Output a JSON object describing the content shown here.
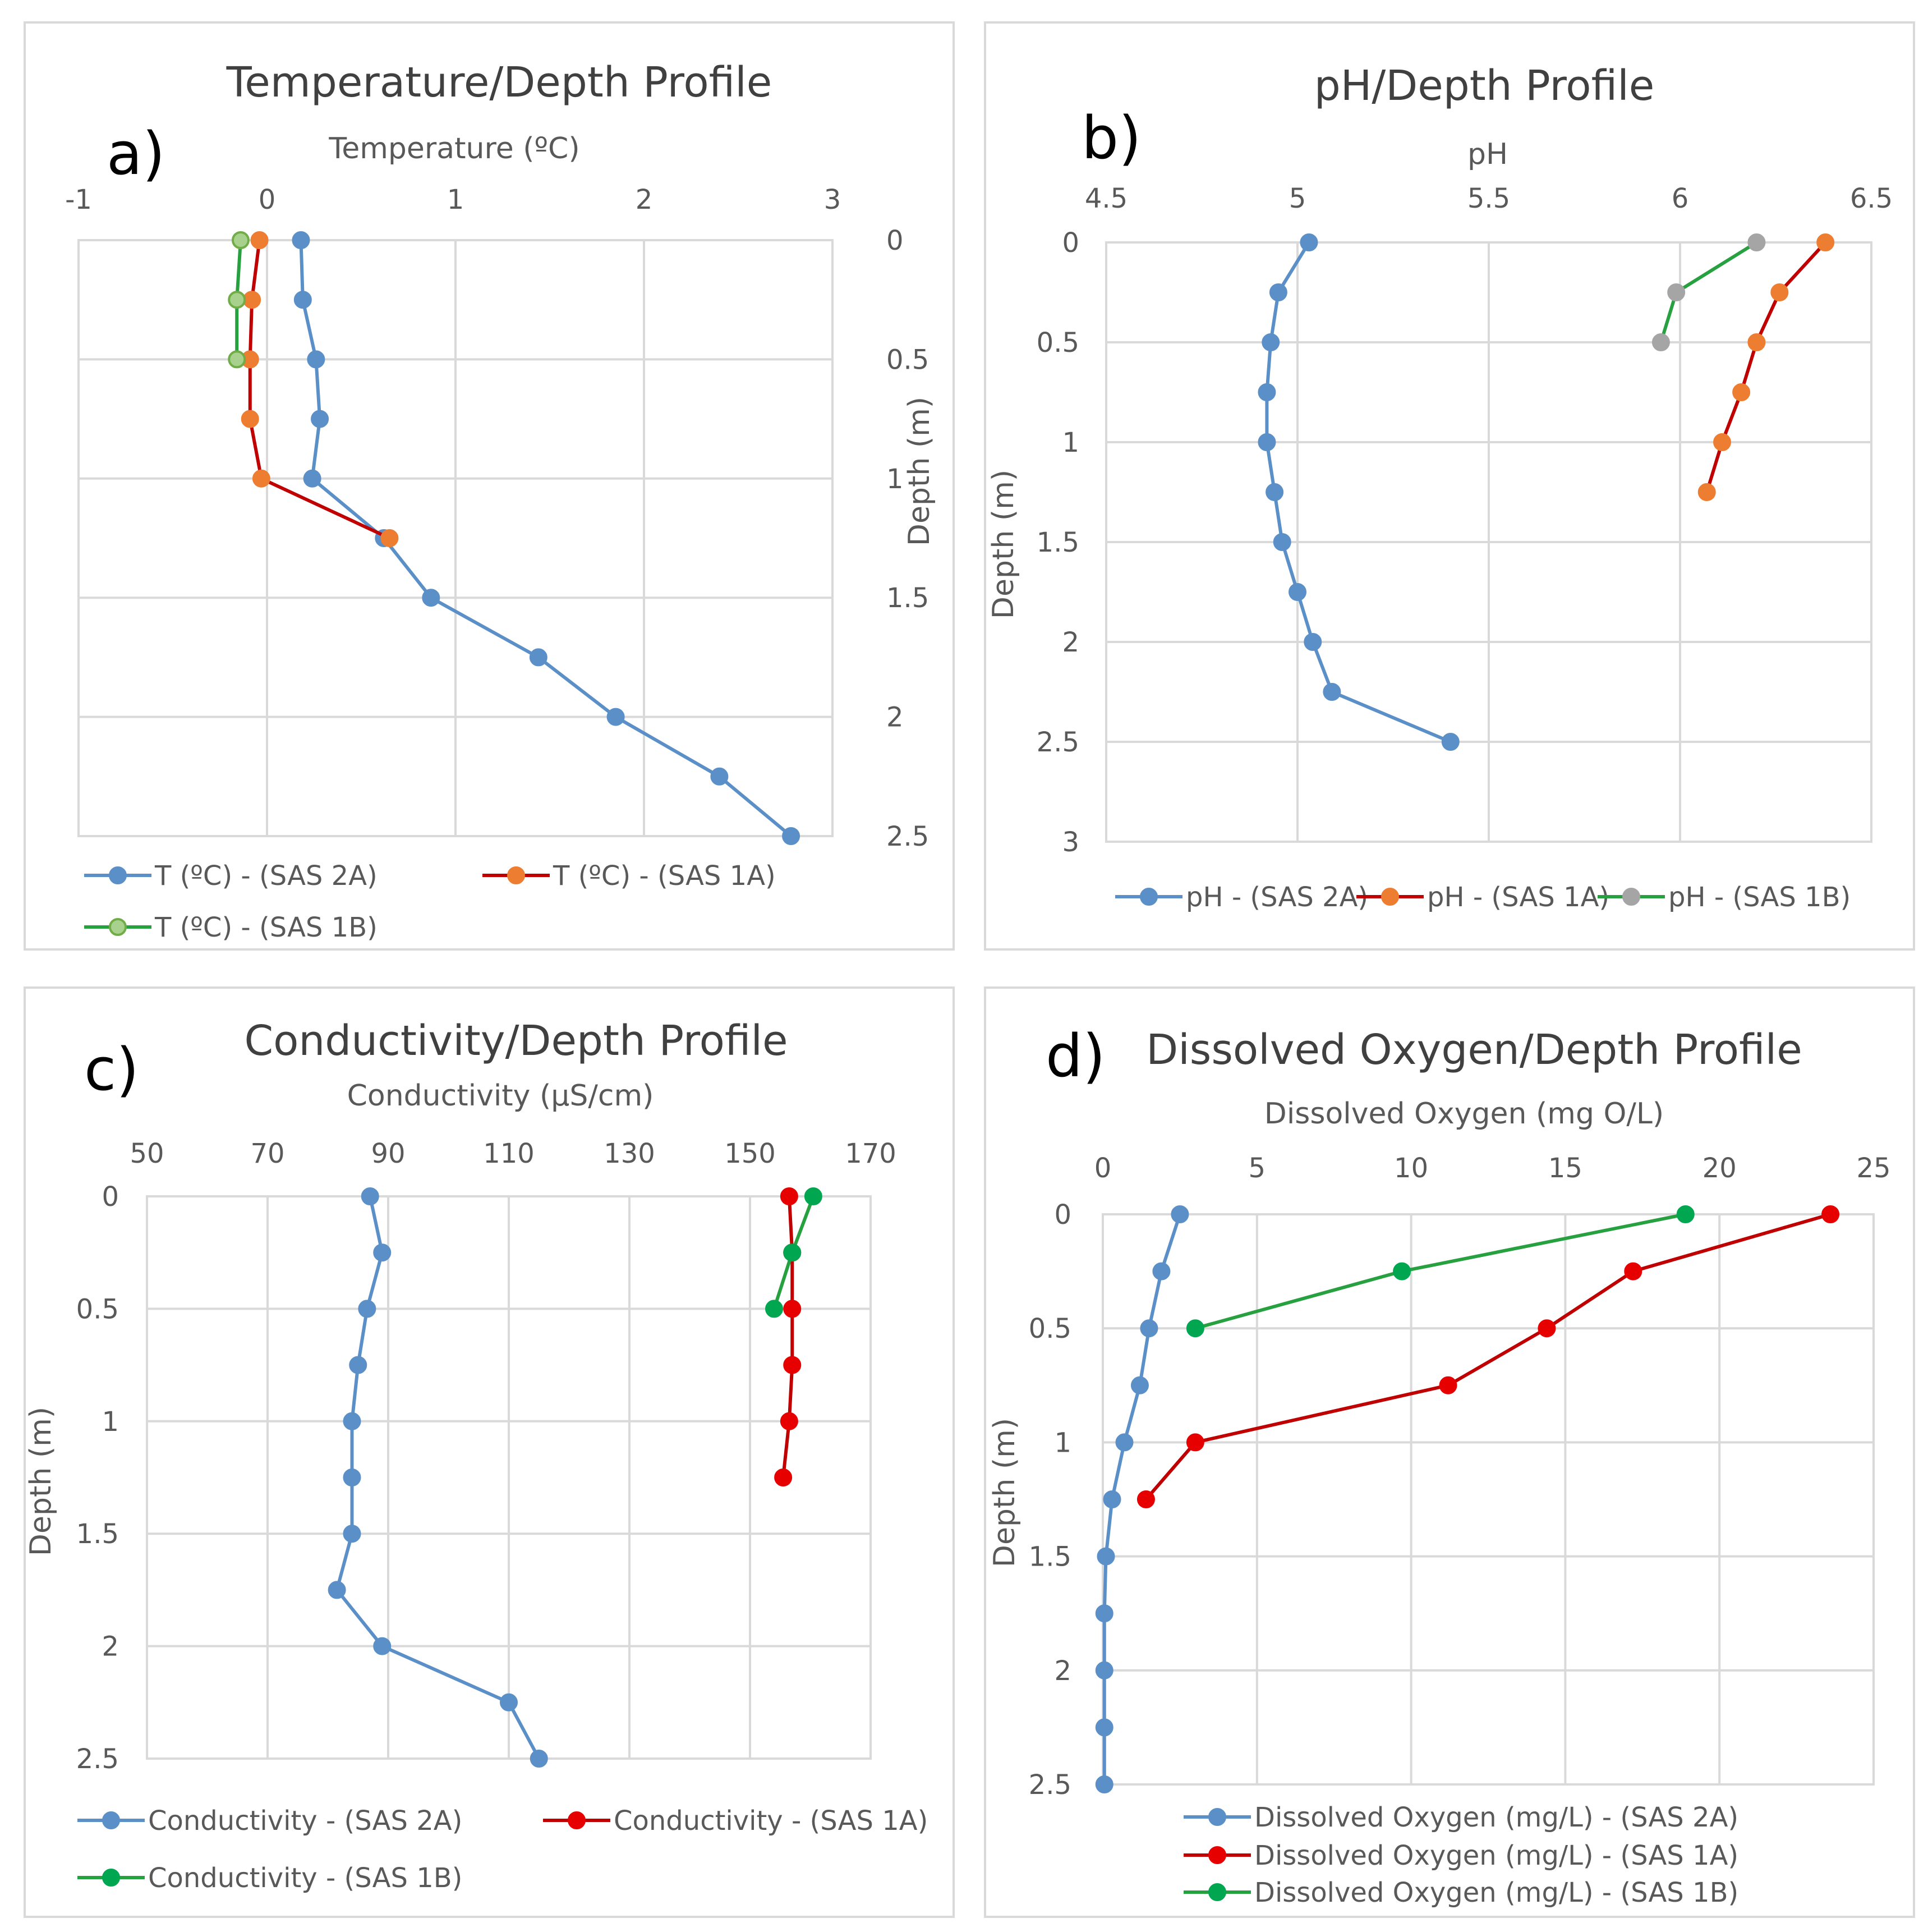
{
  "chart_data": [
    {
      "type": "line",
      "panel_label": "a)",
      "title": "Temperature/Depth Profile",
      "xlabel": "Temperature (ºC)",
      "ylabel": "Depth (m)",
      "xlim": [
        -1,
        3
      ],
      "ylim": [
        0,
        2.5
      ],
      "x_ticks": [
        "-1",
        "0",
        "1",
        "2",
        "3"
      ],
      "y_ticks": [
        "0",
        "0.5",
        "1",
        "1.5",
        "2",
        "2.5"
      ],
      "grid": true,
      "legend_position": "bottom",
      "series": [
        {
          "name": "T (ºC) - (SAS 2A)",
          "color": "#5b8fc7",
          "marker_fill": "#5b8fc7",
          "line_color": "#5b8fc7",
          "x": [
            0.18,
            0.19,
            0.26,
            0.28,
            0.24,
            0.62,
            0.87,
            1.44,
            1.85,
            2.4,
            2.78
          ],
          "y": [
            0,
            0.25,
            0.5,
            0.75,
            1,
            1.25,
            1.5,
            1.75,
            2,
            2.25,
            2.5
          ]
        },
        {
          "name": "T (ºC) - (SAS 1A)",
          "color": "#ed7d31",
          "marker_fill": "#ed7d31",
          "line_color": "#c00000",
          "x": [
            -0.04,
            -0.08,
            -0.09,
            -0.09,
            -0.03,
            0.65
          ],
          "y": [
            0,
            0.25,
            0.5,
            0.75,
            1,
            1.25
          ]
        },
        {
          "name": "T (ºC) - (SAS 1B)",
          "color": "#70ad47",
          "marker_fill": "#a9d18e",
          "line_color": "#27a040",
          "x": [
            -0.14,
            -0.16,
            -0.16
          ],
          "y": [
            0,
            0.25,
            0.5
          ]
        }
      ]
    },
    {
      "type": "line",
      "panel_label": "b)",
      "title": "pH/Depth Profile",
      "xlabel": "pH",
      "ylabel": "Depth (m)",
      "xlim": [
        4.5,
        6.5
      ],
      "ylim": [
        0,
        3
      ],
      "x_ticks": [
        "4.5",
        "5",
        "5.5",
        "6",
        "6.5"
      ],
      "y_ticks": [
        "0",
        "0.5",
        "1",
        "1.5",
        "2",
        "2.5",
        "3"
      ],
      "grid": true,
      "legend_position": "bottom",
      "series": [
        {
          "name": "pH - (SAS 2A)",
          "color": "#5b8fc7",
          "marker_fill": "#5b8fc7",
          "line_color": "#5b8fc7",
          "x": [
            5.03,
            4.95,
            4.93,
            4.92,
            4.92,
            4.94,
            4.96,
            5.0,
            5.04,
            5.09,
            5.4
          ],
          "y": [
            0,
            0.25,
            0.5,
            0.75,
            1,
            1.25,
            1.5,
            1.75,
            2,
            2.25,
            2.5
          ]
        },
        {
          "name": "pH - (SAS 1A)",
          "color": "#ed7d31",
          "marker_fill": "#ed7d31",
          "line_color": "#c00000",
          "x": [
            6.38,
            6.26,
            6.2,
            6.16,
            6.11,
            6.07
          ],
          "y": [
            0,
            0.25,
            0.5,
            0.75,
            1,
            1.25
          ]
        },
        {
          "name": "pH - (SAS 1B)",
          "color": "#a5a5a5",
          "marker_fill": "#a5a5a5",
          "line_color": "#27a040",
          "x": [
            6.2,
            5.99,
            5.95
          ],
          "y": [
            0,
            0.25,
            0.5
          ]
        }
      ]
    },
    {
      "type": "line",
      "panel_label": "c)",
      "title": "Conductivity/Depth Profile",
      "xlabel": "Conductivity (µS/cm)",
      "ylabel": "Depth (m)",
      "xlim": [
        50,
        170
      ],
      "ylim": [
        0,
        2.5
      ],
      "x_ticks": [
        "50",
        "70",
        "90",
        "110",
        "130",
        "150",
        "170"
      ],
      "y_ticks": [
        "0",
        "0.5",
        "1",
        "1.5",
        "2",
        "2.5"
      ],
      "grid": true,
      "legend_position": "bottom",
      "series": [
        {
          "name": "Conductivity - (SAS 2A)",
          "color": "#5b8fc7",
          "marker_fill": "#5b8fc7",
          "line_color": "#5b8fc7",
          "x": [
            87,
            89,
            86.5,
            85,
            84,
            84,
            84,
            81.5,
            89,
            110,
            115
          ],
          "y": [
            0,
            0.25,
            0.5,
            0.75,
            1,
            1.25,
            1.5,
            1.75,
            2,
            2.25,
            2.5
          ]
        },
        {
          "name": "Conductivity - (SAS 1A)",
          "color": "#e60000",
          "marker_fill": "#e60000",
          "line_color": "#c00000",
          "x": [
            156.5,
            157,
            157,
            157,
            156.5,
            155.5
          ],
          "y": [
            0,
            0.25,
            0.5,
            0.75,
            1,
            1.25
          ]
        },
        {
          "name": "Conductivity - (SAS 1B)",
          "color": "#00a650",
          "marker_fill": "#00a650",
          "line_color": "#27a040",
          "x": [
            160.5,
            157,
            154
          ],
          "y": [
            0,
            0.25,
            0.5
          ]
        }
      ]
    },
    {
      "type": "line",
      "panel_label": "d)",
      "title": "Dissolved Oxygen/Depth Profile",
      "xlabel": "Dissolved Oxygen (mg O/L)",
      "ylabel": "Depth (m)",
      "xlim": [
        0,
        25
      ],
      "ylim": [
        0,
        2.5
      ],
      "x_ticks": [
        "0",
        "5",
        "10",
        "15",
        "20",
        "25"
      ],
      "y_ticks": [
        "0",
        "0.5",
        "1",
        "1.5",
        "2",
        "2.5"
      ],
      "grid": true,
      "legend_position": "bottom",
      "series": [
        {
          "name": "Dissolved Oxygen (mg/L) - (SAS 2A)",
          "color": "#5b8fc7",
          "marker_fill": "#5b8fc7",
          "line_color": "#5b8fc7",
          "x": [
            2.5,
            1.9,
            1.5,
            1.2,
            0.7,
            0.3,
            0.1,
            0.05,
            0.05,
            0.05,
            0.05
          ],
          "y": [
            0,
            0.25,
            0.5,
            0.75,
            1,
            1.25,
            1.5,
            1.75,
            2,
            2.25,
            2.5
          ]
        },
        {
          "name": "Dissolved Oxygen (mg/L) - (SAS 1A)",
          "color": "#e60000",
          "marker_fill": "#e60000",
          "line_color": "#c00000",
          "x": [
            23.6,
            17.2,
            14.4,
            11.2,
            3.0,
            1.4
          ],
          "y": [
            0,
            0.25,
            0.5,
            0.75,
            1,
            1.25
          ]
        },
        {
          "name": "Dissolved Oxygen (mg/L) - (SAS 1B)",
          "color": "#00a650",
          "marker_fill": "#00a650",
          "line_color": "#27a040",
          "x": [
            18.9,
            9.7,
            3.0
          ],
          "y": [
            0,
            0.25,
            0.5
          ]
        }
      ]
    }
  ]
}
